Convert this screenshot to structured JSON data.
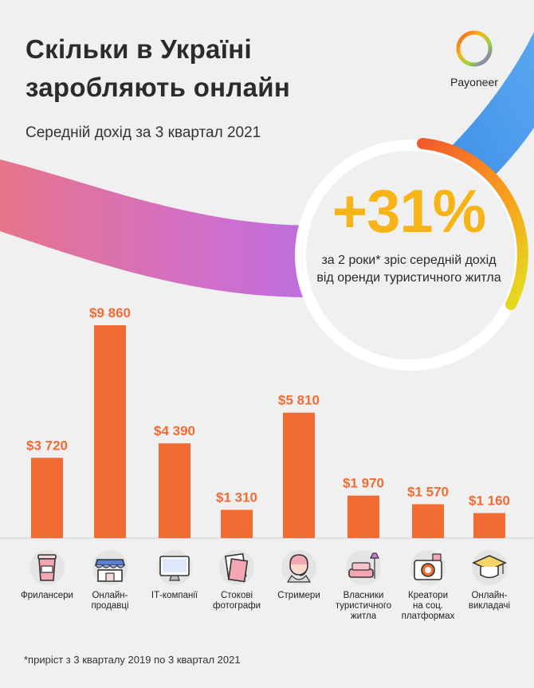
{
  "header": {
    "title_line1": "Скільки в Україні",
    "title_line2": "заробляють онлайн",
    "subtitle": "Середній дохід за 3 квартал 2021"
  },
  "brand": {
    "logo_text": "Payoneer"
  },
  "highlight": {
    "value": "+31%",
    "description": "за 2 роки* зріс середній дохід від оренди туристичного житла"
  },
  "colors": {
    "bar": "#f26b33",
    "bar_label": "#f26b33",
    "highlight": "#f7b416",
    "background": "#f0f0f0"
  },
  "chart_data": {
    "type": "bar",
    "categories": [
      [
        "Фрилансери"
      ],
      [
        "Онлайн-",
        "продавці"
      ],
      [
        "ІТ-компанії"
      ],
      [
        "Стокові",
        "фотографи"
      ],
      [
        "Стримери"
      ],
      [
        "Власники",
        "туристичного",
        "житла"
      ],
      [
        "Креатори",
        "на соц.",
        "платформах"
      ],
      [
        "Онлайн-",
        "викладачі"
      ]
    ],
    "values": [
      3720,
      9860,
      4390,
      1310,
      5810,
      1970,
      1570,
      1160
    ],
    "value_labels": [
      "$3 720",
      "$9 860",
      "$4 390",
      "$1 310",
      "$5 810",
      "$1 970",
      "$1 570",
      "$1 160"
    ],
    "icons": [
      "coffee-cup-icon",
      "storefront-icon",
      "monitor-icon",
      "photo-frames-icon",
      "headset-person-icon",
      "sofa-lamp-icon",
      "camera-icon",
      "graduation-cap-icon"
    ],
    "ylim": [
      0,
      10000
    ],
    "grid": false,
    "legend": "none"
  },
  "footnote": "*приріст з 3 кварталу 2019 по 3 квартал 2021"
}
